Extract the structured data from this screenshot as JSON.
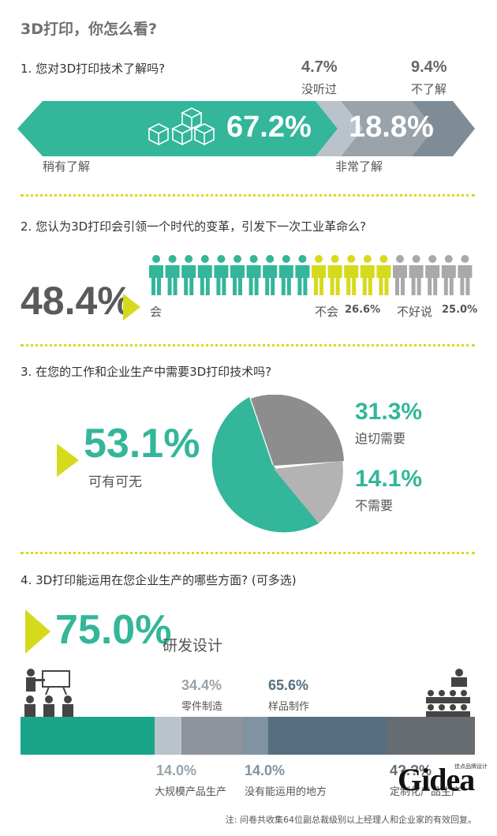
{
  "title": "3D打印，你怎么看?",
  "q1": {
    "question": "1. 您对3D打印技术了解吗?",
    "a_pct": "67.2%",
    "a_label": "稍有了解",
    "b_pct": "18.8%",
    "b_label": "非常了解",
    "c_pct": "4.7%",
    "c_label": "没听过",
    "d_pct": "9.4%",
    "d_label": "不了解"
  },
  "q2": {
    "question": "2. 您认为3D打印会引领一个时代的变革，引发下一次工业革命么?",
    "yes_pct": "48.4%",
    "yes_label": "会",
    "no_label": "不会",
    "no_pct": "26.6%",
    "unsure_label": "不好说",
    "unsure_pct": "25.0%",
    "people": {
      "teal": 10,
      "yellow": 5,
      "grey": 5
    }
  },
  "q3": {
    "question": "3. 在您的工作和企业生产中需要3D打印技术吗?",
    "a_pct": "53.1%",
    "a_label": "可有可无",
    "b_pct": "31.3%",
    "b_label": "迫切需要",
    "c_pct": "14.1%",
    "c_label": "不需要"
  },
  "q4": {
    "question": "4. 3D打印能运用在您企业生产的哪些方面? (可多选)",
    "top_pct": "75.0%",
    "top_label": "研发设计",
    "parts_pct": "34.4%",
    "parts_label": "零件制造",
    "sample_pct": "65.6%",
    "sample_label": "样品制作",
    "mass_pct": "14.0%",
    "mass_label": "大规模产品生产",
    "none_pct": "14.0%",
    "none_label": "没有能运用的地方",
    "custom_pct": "4?.?%",
    "custom_label": "定制化产品生产"
  },
  "logo": {
    "text": "Gidea",
    "sub": "佳点品牌设计"
  },
  "note": "注: 问卷共收集64位副总裁级别以上经理人和企业家的有效回复。",
  "colors": {
    "teal": "#33b69a",
    "yellow": "#d6da1c",
    "grey": "#8d949b",
    "dark": "#566f80",
    "light": "#b9c3c9"
  }
}
